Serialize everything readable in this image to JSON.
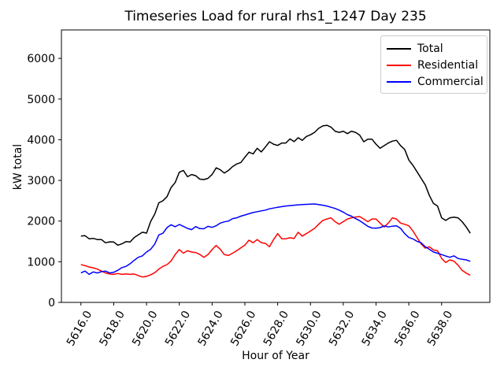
{
  "title": "Timeseries Load for rural rhs1_1247  Day 235",
  "chart_data": {
    "type": "line",
    "title": "Timeseries Load for rural rhs1_1247  Day 235",
    "xlabel": "Hour of Year",
    "ylabel": "kW total",
    "xlim": [
      5614.81,
      5640.94
    ],
    "ylim": [
      0,
      6700
    ],
    "grid": false,
    "legend_position": "upper right",
    "xticks": [
      {
        "value": 5616,
        "label": "5616.0"
      },
      {
        "value": 5618,
        "label": "5618.0"
      },
      {
        "value": 5620,
        "label": "5620.0"
      },
      {
        "value": 5622,
        "label": "5622.0"
      },
      {
        "value": 5624,
        "label": "5624.0"
      },
      {
        "value": 5626,
        "label": "5626.0"
      },
      {
        "value": 5628,
        "label": "5628.0"
      },
      {
        "value": 5630,
        "label": "5630.0"
      },
      {
        "value": 5632,
        "label": "5632.0"
      },
      {
        "value": 5634,
        "label": "5634.0"
      },
      {
        "value": 5636,
        "label": "5636.0"
      },
      {
        "value": 5638,
        "label": "5638.0"
      }
    ],
    "yticks": [
      {
        "value": 0,
        "label": "0"
      },
      {
        "value": 1000,
        "label": "1000"
      },
      {
        "value": 2000,
        "label": "2000"
      },
      {
        "value": 3000,
        "label": "3000"
      },
      {
        "value": 4000,
        "label": "4000"
      },
      {
        "value": 5000,
        "label": "5000"
      },
      {
        "value": 6000,
        "label": "6000"
      }
    ],
    "x_start": 5616.0,
    "x_step": 0.25,
    "series": [
      {
        "name": "Total",
        "color": "#000000",
        "values": [
          1630,
          1640,
          1565,
          1575,
          1545,
          1545,
          1465,
          1490,
          1485,
          1405,
          1440,
          1495,
          1485,
          1595,
          1660,
          1725,
          1705,
          1990,
          2170,
          2450,
          2500,
          2600,
          2825,
          2950,
          3200,
          3245,
          3090,
          3145,
          3115,
          3030,
          3020,
          3050,
          3145,
          3310,
          3260,
          3180,
          3245,
          3340,
          3405,
          3440,
          3570,
          3695,
          3650,
          3790,
          3700,
          3820,
          3950,
          3890,
          3860,
          3920,
          3920,
          4020,
          3955,
          4050,
          3985,
          4080,
          4120,
          4180,
          4280,
          4340,
          4355,
          4310,
          4210,
          4180,
          4210,
          4150,
          4210,
          4180,
          4115,
          3950,
          4015,
          4015,
          3890,
          3790,
          3855,
          3920,
          3965,
          3985,
          3855,
          3760,
          3500,
          3370,
          3210,
          3050,
          2890,
          2630,
          2435,
          2370,
          2080,
          2015,
          2080,
          2095,
          2080,
          1985,
          1855,
          1700
        ]
      },
      {
        "name": "Residential",
        "color": "#ff0000",
        "values": [
          930,
          905,
          870,
          850,
          820,
          770,
          725,
          700,
          690,
          710,
          690,
          700,
          690,
          700,
          660,
          625,
          640,
          680,
          730,
          820,
          885,
          930,
          1020,
          1180,
          1300,
          1210,
          1270,
          1240,
          1225,
          1180,
          1110,
          1175,
          1300,
          1400,
          1305,
          1175,
          1155,
          1210,
          1270,
          1340,
          1410,
          1530,
          1465,
          1545,
          1470,
          1450,
          1370,
          1545,
          1690,
          1565,
          1565,
          1590,
          1570,
          1725,
          1630,
          1690,
          1755,
          1820,
          1920,
          2015,
          2050,
          2080,
          1985,
          1920,
          1985,
          2050,
          2080,
          2100,
          2110,
          2050,
          1985,
          2050,
          2050,
          1950,
          1855,
          1950,
          2080,
          2050,
          1950,
          1920,
          1885,
          1755,
          1595,
          1435,
          1335,
          1370,
          1290,
          1270,
          1080,
          980,
          1045,
          1015,
          915,
          790,
          720,
          670
        ]
      },
      {
        "name": "Commercial",
        "color": "#0000ff",
        "values": [
          725,
          770,
          690,
          750,
          725,
          755,
          770,
          725,
          740,
          790,
          855,
          885,
          950,
          1035,
          1110,
          1145,
          1240,
          1305,
          1435,
          1660,
          1700,
          1840,
          1910,
          1860,
          1915,
          1870,
          1820,
          1790,
          1865,
          1815,
          1810,
          1870,
          1845,
          1885,
          1950,
          1980,
          2000,
          2060,
          2080,
          2120,
          2150,
          2180,
          2210,
          2230,
          2250,
          2270,
          2300,
          2320,
          2340,
          2355,
          2370,
          2380,
          2390,
          2400,
          2405,
          2410,
          2415,
          2420,
          2405,
          2390,
          2370,
          2340,
          2310,
          2270,
          2220,
          2160,
          2120,
          2060,
          2010,
          1940,
          1870,
          1830,
          1825,
          1840,
          1880,
          1855,
          1875,
          1885,
          1820,
          1690,
          1595,
          1560,
          1500,
          1465,
          1370,
          1305,
          1240,
          1210,
          1175,
          1140,
          1110,
          1145,
          1080,
          1060,
          1045,
          1010
        ]
      }
    ]
  }
}
